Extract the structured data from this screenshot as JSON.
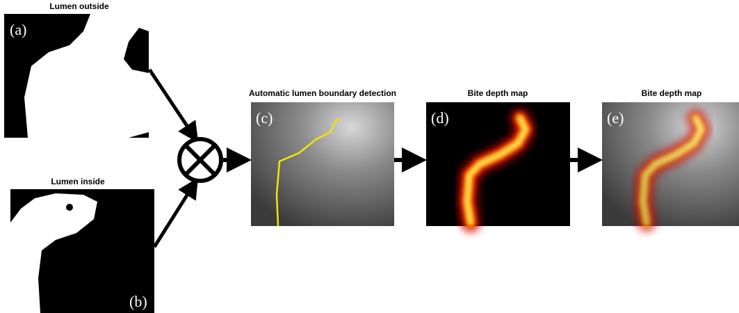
{
  "panels": [
    {
      "title": "Lumen outside",
      "label": "(a)"
    },
    {
      "title": "Lumen inside",
      "label": "(b)"
    },
    {
      "title": "Automatic lumen boundary detection",
      "label": "(c)"
    },
    {
      "title": "Bite depth map",
      "label": "(d)"
    },
    {
      "title": "Bite depth map",
      "label": "(e)"
    }
  ]
}
